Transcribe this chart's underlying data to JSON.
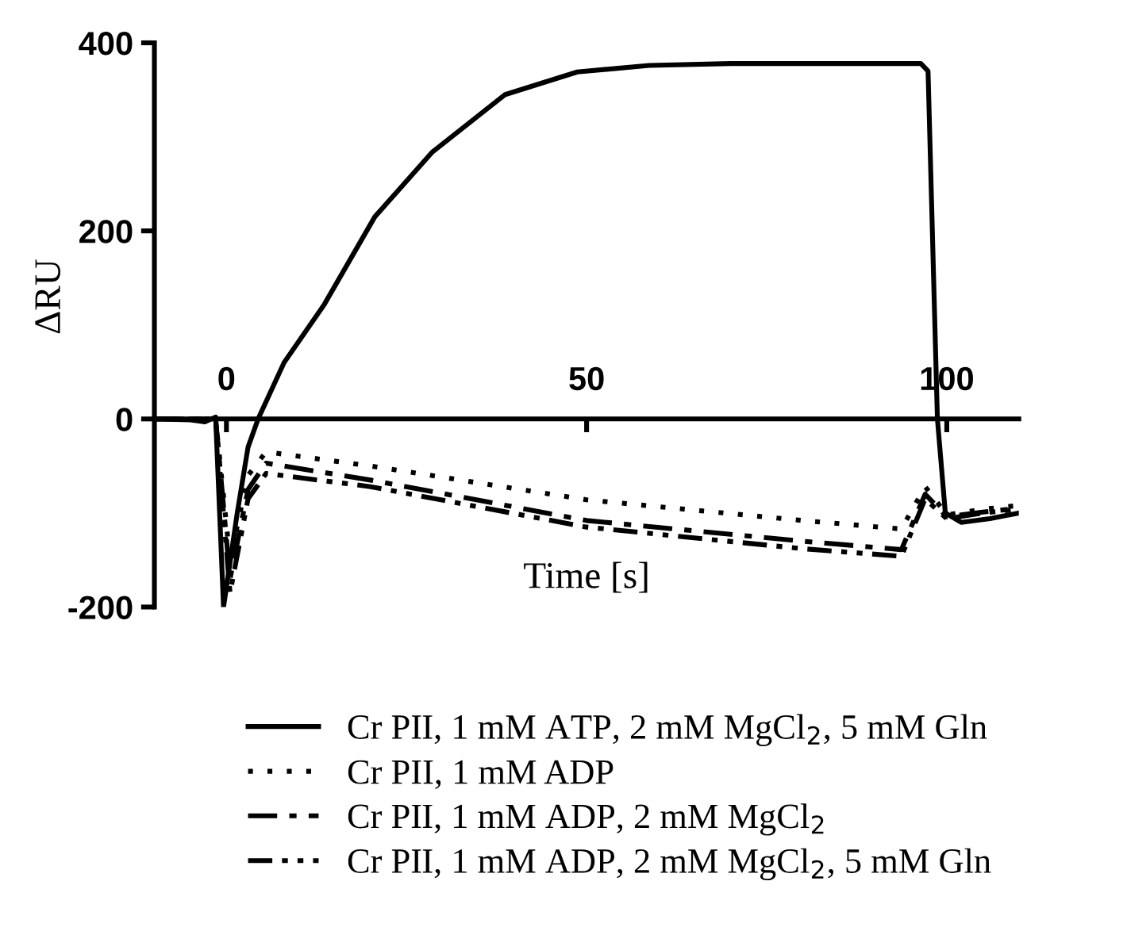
{
  "chart_data": {
    "type": "line",
    "xlabel": "Time [s]",
    "ylabel": "ΔRU",
    "xlim": [
      -10,
      110
    ],
    "ylim": [
      -200,
      400
    ],
    "xticks": [
      0,
      50,
      100
    ],
    "yticks": [
      -200,
      0,
      200,
      400
    ],
    "grid": false,
    "legend": "bottom",
    "marker": "none",
    "series": [
      {
        "name": "Cr PII, 1 mM ATP, 2 mM MgCl$_{2}$, 5 mM Gln",
        "color": "#000000",
        "line_style": "solid",
        "x": [
          -10,
          -5,
          -3,
          -1.5,
          -0.4,
          1.5,
          3,
          4.4,
          8,
          13.6,
          20.6,
          28.6,
          38.7,
          48.7,
          58.7,
          70,
          85,
          96.4,
          97.4,
          98.7,
          99.8,
          102,
          106,
          110
        ],
        "values": [
          0,
          -1,
          -3,
          2,
          -200,
          -100,
          -30,
          0,
          60,
          122,
          215,
          284,
          345,
          369,
          376,
          378,
          378,
          378,
          370,
          0,
          -100,
          -110,
          -106,
          -100
        ]
      },
      {
        "name": "Cr PII, 1 mM ADP",
        "color": "#000000",
        "line_style": "dotted",
        "x": [
          -10,
          -1.5,
          0.5,
          3,
          5.5,
          20,
          50,
          80,
          93.7,
          97,
          100,
          105,
          110
        ],
        "values": [
          0,
          0,
          -150,
          -60,
          -35,
          -50,
          -86,
          -108,
          -117,
          -72,
          -102,
          -96,
          -92
        ]
      },
      {
        "name": "Cr PII, 1 mM ADP, 2 mM MgCl$_{2}$",
        "color": "#000000",
        "line_style": "dashdot",
        "x": [
          -10,
          -1.5,
          0.5,
          3,
          5.5,
          20,
          50,
          80,
          93.7,
          97,
          100,
          105,
          110
        ],
        "values": [
          0,
          0,
          -170,
          -75,
          -47,
          -65,
          -108,
          -130,
          -139,
          -80,
          -104,
          -99,
          -95
        ]
      },
      {
        "name": "Cr PII, 1 mM ADP, 2 mM MgCl$_{2}$, 5 mM Gln",
        "color": "#000000",
        "line_style": "dashdotdot",
        "x": [
          -10,
          -1.5,
          0.5,
          3,
          5.5,
          20,
          50,
          80,
          93.7,
          97,
          100,
          105,
          110
        ],
        "values": [
          0,
          0,
          -185,
          -85,
          -58,
          -72,
          -115,
          -138,
          -146,
          -85,
          -106,
          -100,
          -96
        ]
      }
    ]
  }
}
